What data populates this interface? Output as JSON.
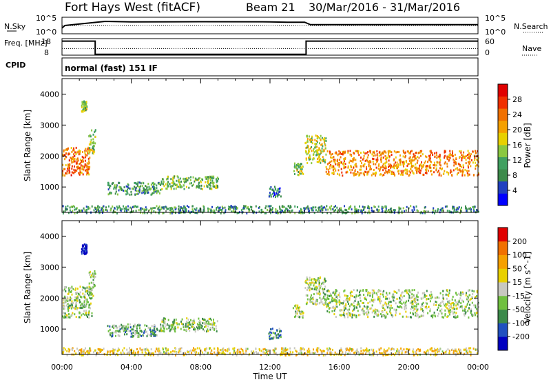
{
  "header": {
    "station": "Fort Hays West (fitACF)",
    "beam": "Beam 21",
    "dates": "30/Mar/2016 - 31/Mar/2016"
  },
  "colors": {
    "power_scale": [
      "#0000ff",
      "#2040c0",
      "#3c8a4a",
      "#40a060",
      "#8ac840",
      "#e8d000",
      "#f5a000",
      "#f07000",
      "#f03000",
      "#e00000"
    ],
    "velocity_scale": [
      "#0000c0",
      "#2050c0",
      "#3c8a4a",
      "#70c040",
      "#c8c8c0",
      "#e8d000",
      "#f5a000",
      "#f07000",
      "#e00000"
    ],
    "ground_scatter": "#c8c8c0"
  },
  "chart_data": [
    {
      "type": "line",
      "panel": "noise",
      "left_label": "N.Sky",
      "right_label": "N.Search",
      "left_ticks": [
        "10^5",
        "10^0"
      ],
      "right_ticks": [
        "10^5",
        "10^0"
      ],
      "series": [
        {
          "name": "N.Sky",
          "style": "solid",
          "x": [
            "00:00",
            "00:10",
            "02:00",
            "02:30",
            "04:00",
            "08:00",
            "12:00",
            "13:00",
            "14:00",
            "14:20",
            "20:00",
            "24:00"
          ],
          "y": [
            0.35,
            0.5,
            0.7,
            0.75,
            0.72,
            0.73,
            0.72,
            0.7,
            0.7,
            0.55,
            0.55,
            0.55
          ]
        },
        {
          "name": "N.Search",
          "style": "dotted",
          "x": [
            "00:00",
            "24:00"
          ],
          "y": [
            0.5,
            0.5
          ]
        }
      ]
    },
    {
      "type": "line",
      "panel": "frequency",
      "left_label": "Freq. [MHz]",
      "right_label": "Nave",
      "left_ticks": [
        "18",
        "8"
      ],
      "right_ticks": [
        "60",
        "0"
      ],
      "series": [
        {
          "name": "Freq.",
          "style": "solid",
          "x": [
            "00:00",
            "01:55",
            "01:55",
            "14:05",
            "14:05",
            "24:00"
          ],
          "y": [
            0.85,
            0.85,
            0.05,
            0.05,
            0.85,
            0.85
          ]
        },
        {
          "name": "Nave",
          "style": "dotted",
          "x": [
            "00:00",
            "24:00"
          ],
          "y": [
            0.4,
            0.4
          ]
        }
      ]
    },
    {
      "type": "table",
      "panel": "cpid",
      "left_label": "CPID",
      "program": "normal (fast) 151 IF"
    },
    {
      "type": "heatmap",
      "panel": "power",
      "xlabel": "",
      "ylabel": "Slant Range [km]",
      "colorbar_label": "Power [dB]",
      "colorbar_ticks": [
        "28",
        "24",
        "20",
        "16",
        "12",
        "8",
        "4"
      ],
      "xlim": [
        0,
        24
      ],
      "ylim": [
        180,
        4500
      ],
      "y_ticks": [
        1000,
        2000,
        3000,
        4000
      ],
      "regions": [
        {
          "x": [
            0.0,
            1.6
          ],
          "y": [
            1400,
            2300
          ],
          "level": 0.75
        },
        {
          "x": [
            1.5,
            1.9
          ],
          "y": [
            2100,
            2900
          ],
          "level": 0.45
        },
        {
          "x": [
            1.1,
            1.4
          ],
          "y": [
            3450,
            3800
          ],
          "level": 0.45
        },
        {
          "x": [
            2.6,
            5.7
          ],
          "y": [
            780,
            1180
          ],
          "level": 0.32
        },
        {
          "x": [
            5.7,
            9.0
          ],
          "y": [
            950,
            1380
          ],
          "level": 0.38
        },
        {
          "x": [
            11.9,
            12.6
          ],
          "y": [
            700,
            1050
          ],
          "level": 0.25
        },
        {
          "x": [
            13.3,
            13.9
          ],
          "y": [
            1400,
            1800
          ],
          "level": 0.45
        },
        {
          "x": [
            14.0,
            15.2
          ],
          "y": [
            1800,
            2700
          ],
          "level": 0.5
        },
        {
          "x": [
            15.2,
            24.0
          ],
          "y": [
            1400,
            2200
          ],
          "level": 0.7
        },
        {
          "x": [
            0.0,
            24.0
          ],
          "y": [
            180,
            420
          ],
          "level": 0.3
        }
      ]
    },
    {
      "type": "heatmap",
      "panel": "velocity",
      "xlabel": "Time UT",
      "ylabel": "Slant Range [km]",
      "colorbar_label": "Velocity [m s^-1]",
      "colorbar_ticks": [
        "200",
        "100",
        "50",
        "15",
        "-15",
        "-50",
        "-100",
        "-200"
      ],
      "xlim": [
        0,
        24
      ],
      "ylim": [
        180,
        4500
      ],
      "y_ticks": [
        1000,
        2000,
        3000,
        4000
      ],
      "x_ticks": [
        "00:00",
        "04:00",
        "08:00",
        "12:00",
        "16:00",
        "20:00",
        "00:00"
      ],
      "regions": [
        {
          "x": [
            0.0,
            1.7
          ],
          "y": [
            1400,
            2400
          ],
          "level": 0.45
        },
        {
          "x": [
            1.5,
            1.9
          ],
          "y": [
            2100,
            2900
          ],
          "level": 0.45
        },
        {
          "x": [
            1.1,
            1.4
          ],
          "y": [
            3450,
            3800
          ],
          "level": 0.05
        },
        {
          "x": [
            2.6,
            5.7
          ],
          "y": [
            780,
            1180
          ],
          "level": 0.35
        },
        {
          "x": [
            5.7,
            9.0
          ],
          "y": [
            950,
            1380
          ],
          "level": 0.42
        },
        {
          "x": [
            11.9,
            12.6
          ],
          "y": [
            700,
            1050
          ],
          "level": 0.3
        },
        {
          "x": [
            13.3,
            13.9
          ],
          "y": [
            1400,
            1800
          ],
          "level": 0.45
        },
        {
          "x": [
            14.0,
            15.2
          ],
          "y": [
            1800,
            2700
          ],
          "level": 0.45
        },
        {
          "x": [
            15.2,
            24.0
          ],
          "y": [
            1400,
            2300
          ],
          "level": 0.45
        },
        {
          "x": [
            0.0,
            24.0
          ],
          "y": [
            180,
            420
          ],
          "level": 0.6
        }
      ]
    }
  ]
}
